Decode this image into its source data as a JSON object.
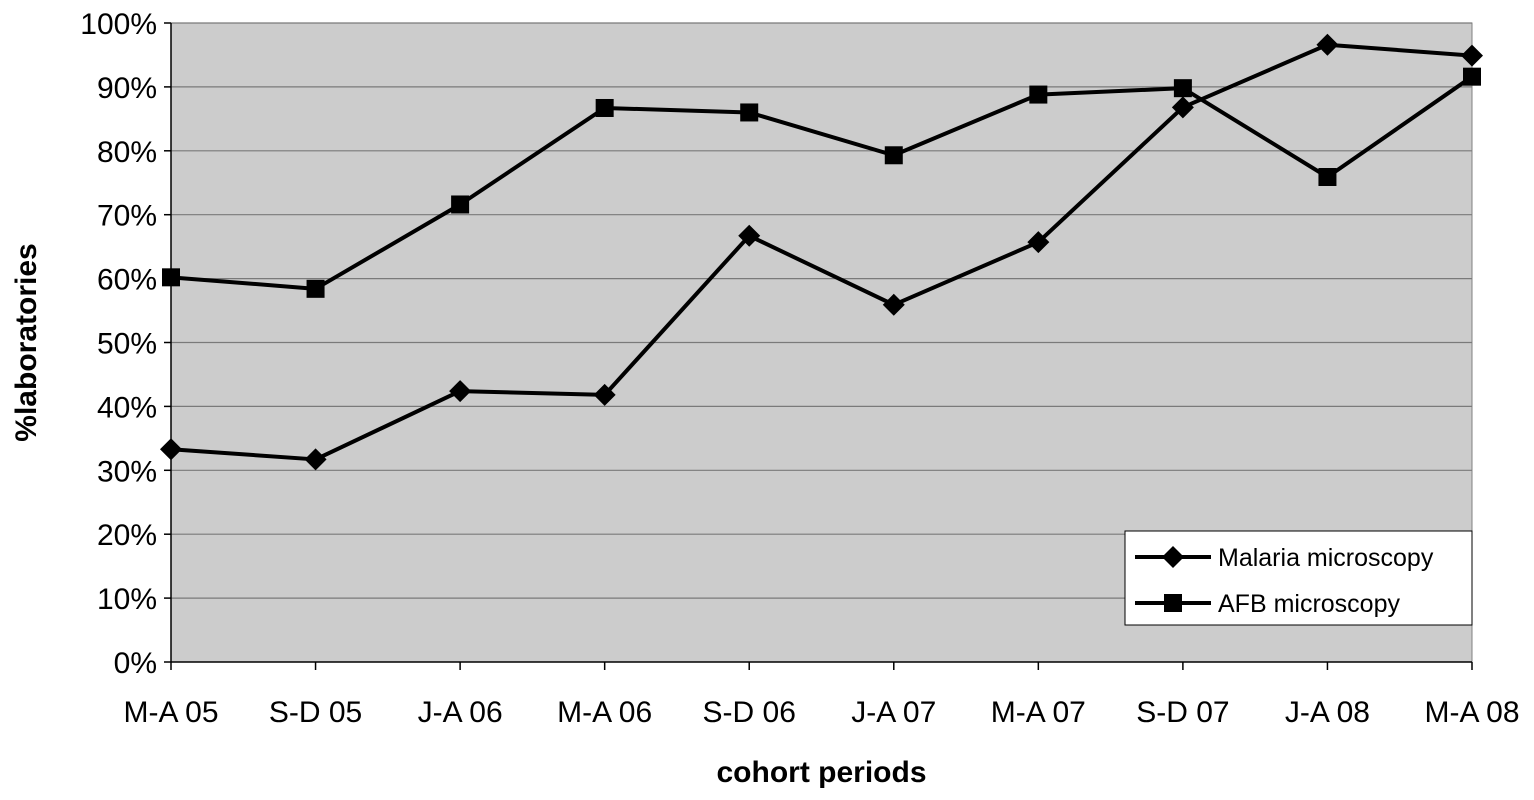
{
  "chart_data": {
    "type": "line",
    "title": "",
    "xlabel": "cohort periods",
    "ylabel": "%laboratories",
    "categories": [
      "M-A 05",
      "S-D 05",
      "J-A 06",
      "M-A 06",
      "S-D 06",
      "J-A 07",
      "M-A 07",
      "S-D 07",
      "J-A 08",
      "M-A 08"
    ],
    "ylim": [
      0,
      100
    ],
    "yticks": [
      "0%",
      "10%",
      "20%",
      "30%",
      "40%",
      "50%",
      "60%",
      "70%",
      "80%",
      "90%",
      "100%"
    ],
    "grid": true,
    "legend_position": "bottom-right",
    "plot_background": "#cccccc",
    "series": [
      {
        "name": "Malaria microscopy",
        "marker": "diamond",
        "color": "#000000",
        "values": [
          33.3,
          31.7,
          42.4,
          41.8,
          66.7,
          55.9,
          65.7,
          86.8,
          96.6,
          94.9
        ]
      },
      {
        "name": "AFB microscopy",
        "marker": "square",
        "color": "#000000",
        "values": [
          60.2,
          58.4,
          71.6,
          86.7,
          86.0,
          79.3,
          88.8,
          89.8,
          75.9,
          91.6
        ]
      }
    ]
  }
}
